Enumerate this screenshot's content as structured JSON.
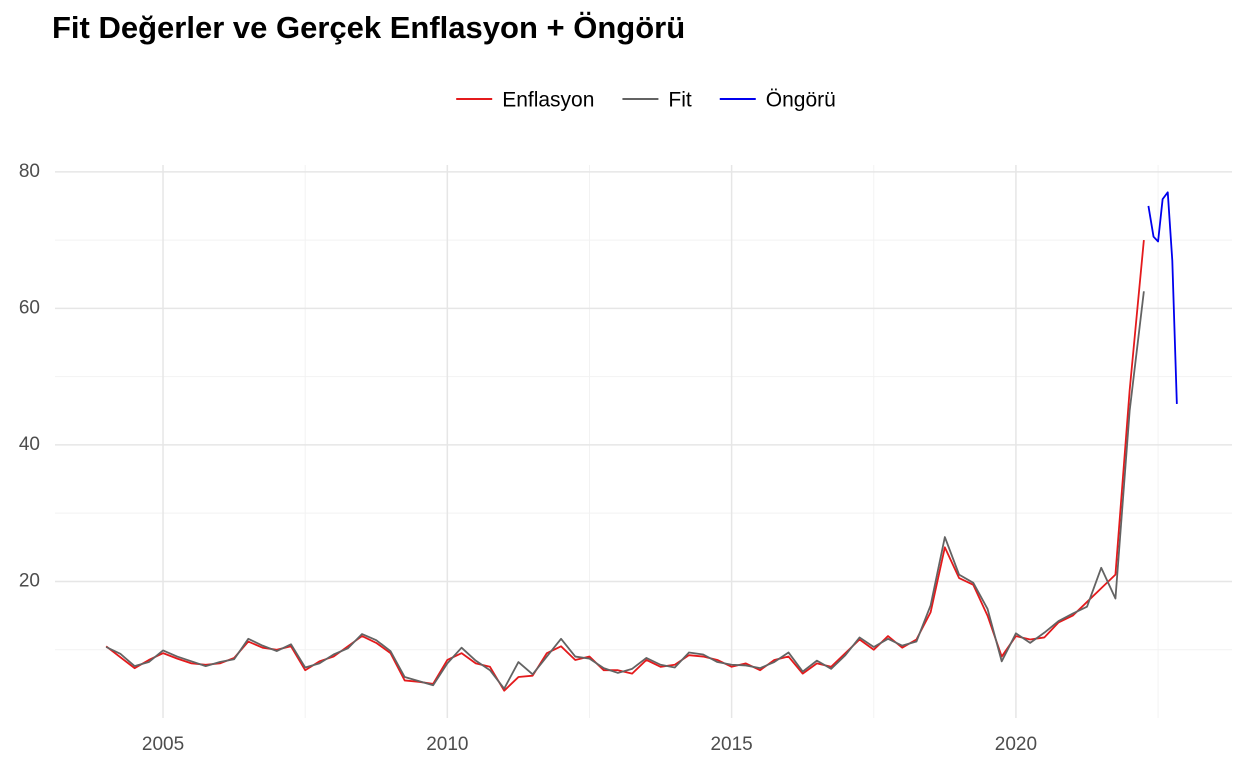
{
  "chart_data": {
    "type": "line",
    "title": "Fit Değerler ve Gerçek Enflasyon + Öngörü",
    "xlim": [
      2003.1,
      2023.8
    ],
    "xticks": [
      2005,
      2010,
      2015,
      2020
    ],
    "x_minor_ticks": [
      2007.5,
      2012.5,
      2017.5,
      2022.5
    ],
    "ylim": [
      0,
      81
    ],
    "yticks": [
      20,
      40,
      60,
      80
    ],
    "y_minor_ticks": [
      10,
      30,
      50,
      70
    ],
    "grid": true,
    "legend": "top",
    "series": [
      {
        "name": "Enflasyon",
        "color": "#e41a1c",
        "x": [
          2004,
          2004.25,
          2004.5,
          2004.75,
          2005,
          2005.25,
          2005.5,
          2005.75,
          2006,
          2006.25,
          2006.5,
          2006.75,
          2007,
          2007.25,
          2007.5,
          2007.75,
          2008,
          2008.25,
          2008.5,
          2008.75,
          2009,
          2009.25,
          2009.5,
          2009.75,
          2010,
          2010.25,
          2010.5,
          2010.75,
          2011,
          2011.25,
          2011.5,
          2011.75,
          2012,
          2012.25,
          2012.5,
          2012.75,
          2013,
          2013.25,
          2013.5,
          2013.75,
          2014,
          2014.25,
          2014.5,
          2014.75,
          2015,
          2015.25,
          2015.5,
          2015.75,
          2016,
          2016.25,
          2016.5,
          2016.75,
          2017,
          2017.25,
          2017.5,
          2017.75,
          2018,
          2018.25,
          2018.5,
          2018.75,
          2019,
          2019.25,
          2019.5,
          2019.75,
          2020,
          2020.25,
          2020.5,
          2020.75,
          2021,
          2021.25,
          2021.5,
          2021.75,
          2022,
          2022.25
        ],
        "values": [
          10.5,
          8.9,
          7.3,
          8.5,
          9.5,
          8.7,
          8.0,
          7.8,
          8.0,
          8.8,
          11.2,
          10.3,
          10.0,
          10.5,
          7.0,
          8.3,
          9.0,
          10.5,
          12.0,
          11.0,
          9.5,
          5.5,
          5.3,
          5.0,
          8.5,
          9.5,
          8.0,
          7.5,
          4.0,
          6.0,
          6.2,
          9.5,
          10.5,
          8.5,
          9.0,
          7.0,
          7.0,
          6.5,
          8.5,
          7.5,
          7.8,
          9.2,
          9.0,
          8.5,
          7.5,
          8.0,
          7.0,
          8.5,
          9.0,
          6.5,
          8.0,
          7.5,
          9.5,
          11.5,
          10.0,
          12.0,
          10.3,
          11.5,
          15.5,
          25.0,
          20.5,
          19.5,
          15.0,
          9.0,
          12.0,
          11.5,
          11.8,
          14.0,
          15.0,
          17.0,
          19.0,
          21.0,
          48.0,
          70.0
        ]
      },
      {
        "name": "Fit",
        "color": "#636363",
        "x": [
          2004,
          2004.25,
          2004.5,
          2004.75,
          2005,
          2005.25,
          2005.5,
          2005.75,
          2006,
          2006.25,
          2006.5,
          2006.75,
          2007,
          2007.25,
          2007.5,
          2007.75,
          2008,
          2008.25,
          2008.5,
          2008.75,
          2009,
          2009.25,
          2009.5,
          2009.75,
          2010,
          2010.25,
          2010.5,
          2010.75,
          2011,
          2011.25,
          2011.5,
          2011.75,
          2012,
          2012.25,
          2012.5,
          2012.75,
          2013,
          2013.25,
          2013.5,
          2013.75,
          2014,
          2014.25,
          2014.5,
          2014.75,
          2015,
          2015.25,
          2015.5,
          2015.75,
          2016,
          2016.25,
          2016.5,
          2016.75,
          2017,
          2017.25,
          2017.5,
          2017.75,
          2018,
          2018.25,
          2018.5,
          2018.75,
          2019,
          2019.25,
          2019.5,
          2019.75,
          2020,
          2020.25,
          2020.5,
          2020.75,
          2021,
          2021.25,
          2021.5,
          2021.75,
          2022,
          2022.25
        ],
        "values": [
          10.4,
          9.4,
          7.6,
          8.2,
          9.9,
          9.0,
          8.3,
          7.6,
          8.2,
          8.6,
          11.6,
          10.6,
          9.8,
          10.8,
          7.4,
          8.0,
          9.3,
          10.2,
          12.3,
          11.4,
          9.8,
          6.0,
          5.4,
          4.8,
          8.0,
          10.3,
          8.4,
          7.0,
          4.3,
          8.2,
          6.4,
          9.0,
          11.6,
          9.0,
          8.7,
          7.3,
          6.6,
          7.2,
          8.8,
          7.8,
          7.4,
          9.6,
          9.3,
          8.2,
          7.8,
          7.7,
          7.3,
          8.2,
          9.6,
          6.8,
          8.4,
          7.2,
          9.2,
          11.8,
          10.4,
          11.6,
          10.6,
          11.2,
          16.5,
          26.5,
          21.0,
          19.8,
          16.0,
          8.3,
          12.4,
          11.0,
          12.5,
          14.2,
          15.3,
          16.3,
          22.0,
          17.5,
          45.0,
          62.5
        ]
      },
      {
        "name": "Öngörü",
        "color": "#0000ee",
        "x": [
          2022.33,
          2022.42,
          2022.5,
          2022.58,
          2022.67,
          2022.75,
          2022.83
        ],
        "values": [
          75.0,
          70.5,
          69.8,
          76.0,
          77.0,
          67.0,
          46.0
        ]
      }
    ]
  }
}
